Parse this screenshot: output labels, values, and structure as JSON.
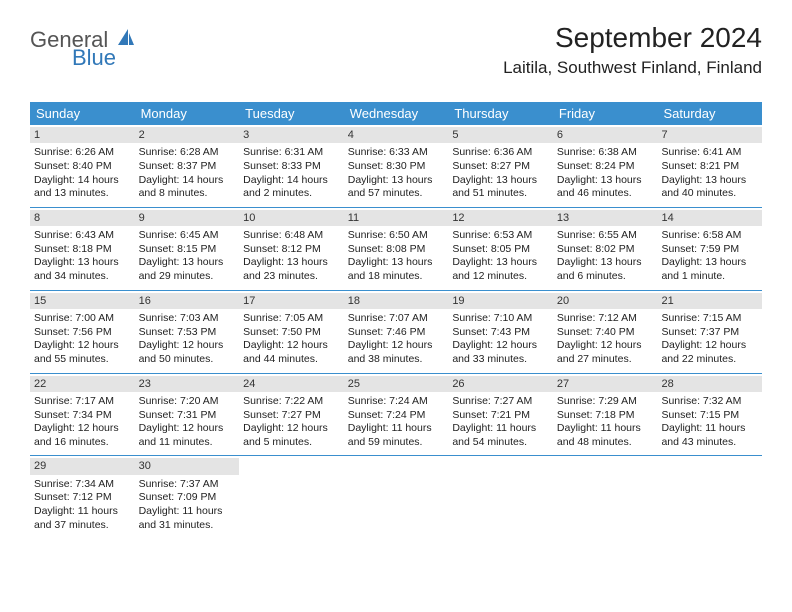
{
  "logo": {
    "word1": "General",
    "word2": "Blue"
  },
  "header": {
    "month_title": "September 2024",
    "location": "Laitila, Southwest Finland, Finland"
  },
  "colors": {
    "header_blue": "#3a8fce",
    "daybar_gray": "#e4e4e4",
    "logo_blue": "#3178b8",
    "text": "#222222",
    "background": "#ffffff"
  },
  "weekdays": [
    "Sunday",
    "Monday",
    "Tuesday",
    "Wednesday",
    "Thursday",
    "Friday",
    "Saturday"
  ],
  "labels": {
    "sunrise_prefix": "Sunrise: ",
    "sunset_prefix": "Sunset: ",
    "daylight_prefix": "Daylight: "
  },
  "days": [
    {
      "n": 1,
      "sunrise": "6:26 AM",
      "sunset": "8:40 PM",
      "daylight": "14 hours and 13 minutes."
    },
    {
      "n": 2,
      "sunrise": "6:28 AM",
      "sunset": "8:37 PM",
      "daylight": "14 hours and 8 minutes."
    },
    {
      "n": 3,
      "sunrise": "6:31 AM",
      "sunset": "8:33 PM",
      "daylight": "14 hours and 2 minutes."
    },
    {
      "n": 4,
      "sunrise": "6:33 AM",
      "sunset": "8:30 PM",
      "daylight": "13 hours and 57 minutes."
    },
    {
      "n": 5,
      "sunrise": "6:36 AM",
      "sunset": "8:27 PM",
      "daylight": "13 hours and 51 minutes."
    },
    {
      "n": 6,
      "sunrise": "6:38 AM",
      "sunset": "8:24 PM",
      "daylight": "13 hours and 46 minutes."
    },
    {
      "n": 7,
      "sunrise": "6:41 AM",
      "sunset": "8:21 PM",
      "daylight": "13 hours and 40 minutes."
    },
    {
      "n": 8,
      "sunrise": "6:43 AM",
      "sunset": "8:18 PM",
      "daylight": "13 hours and 34 minutes."
    },
    {
      "n": 9,
      "sunrise": "6:45 AM",
      "sunset": "8:15 PM",
      "daylight": "13 hours and 29 minutes."
    },
    {
      "n": 10,
      "sunrise": "6:48 AM",
      "sunset": "8:12 PM",
      "daylight": "13 hours and 23 minutes."
    },
    {
      "n": 11,
      "sunrise": "6:50 AM",
      "sunset": "8:08 PM",
      "daylight": "13 hours and 18 minutes."
    },
    {
      "n": 12,
      "sunrise": "6:53 AM",
      "sunset": "8:05 PM",
      "daylight": "13 hours and 12 minutes."
    },
    {
      "n": 13,
      "sunrise": "6:55 AM",
      "sunset": "8:02 PM",
      "daylight": "13 hours and 6 minutes."
    },
    {
      "n": 14,
      "sunrise": "6:58 AM",
      "sunset": "7:59 PM",
      "daylight": "13 hours and 1 minute."
    },
    {
      "n": 15,
      "sunrise": "7:00 AM",
      "sunset": "7:56 PM",
      "daylight": "12 hours and 55 minutes."
    },
    {
      "n": 16,
      "sunrise": "7:03 AM",
      "sunset": "7:53 PM",
      "daylight": "12 hours and 50 minutes."
    },
    {
      "n": 17,
      "sunrise": "7:05 AM",
      "sunset": "7:50 PM",
      "daylight": "12 hours and 44 minutes."
    },
    {
      "n": 18,
      "sunrise": "7:07 AM",
      "sunset": "7:46 PM",
      "daylight": "12 hours and 38 minutes."
    },
    {
      "n": 19,
      "sunrise": "7:10 AM",
      "sunset": "7:43 PM",
      "daylight": "12 hours and 33 minutes."
    },
    {
      "n": 20,
      "sunrise": "7:12 AM",
      "sunset": "7:40 PM",
      "daylight": "12 hours and 27 minutes."
    },
    {
      "n": 21,
      "sunrise": "7:15 AM",
      "sunset": "7:37 PM",
      "daylight": "12 hours and 22 minutes."
    },
    {
      "n": 22,
      "sunrise": "7:17 AM",
      "sunset": "7:34 PM",
      "daylight": "12 hours and 16 minutes."
    },
    {
      "n": 23,
      "sunrise": "7:20 AM",
      "sunset": "7:31 PM",
      "daylight": "12 hours and 11 minutes."
    },
    {
      "n": 24,
      "sunrise": "7:22 AM",
      "sunset": "7:27 PM",
      "daylight": "12 hours and 5 minutes."
    },
    {
      "n": 25,
      "sunrise": "7:24 AM",
      "sunset": "7:24 PM",
      "daylight": "11 hours and 59 minutes."
    },
    {
      "n": 26,
      "sunrise": "7:27 AM",
      "sunset": "7:21 PM",
      "daylight": "11 hours and 54 minutes."
    },
    {
      "n": 27,
      "sunrise": "7:29 AM",
      "sunset": "7:18 PM",
      "daylight": "11 hours and 48 minutes."
    },
    {
      "n": 28,
      "sunrise": "7:32 AM",
      "sunset": "7:15 PM",
      "daylight": "11 hours and 43 minutes."
    },
    {
      "n": 29,
      "sunrise": "7:34 AM",
      "sunset": "7:12 PM",
      "daylight": "11 hours and 37 minutes."
    },
    {
      "n": 30,
      "sunrise": "7:37 AM",
      "sunset": "7:09 PM",
      "daylight": "11 hours and 31 minutes."
    }
  ],
  "layout": {
    "first_weekday_index": 0,
    "weeks": 5,
    "cols": 7,
    "daynum_fontsize": 11,
    "detail_fontsize": 10.5
  }
}
